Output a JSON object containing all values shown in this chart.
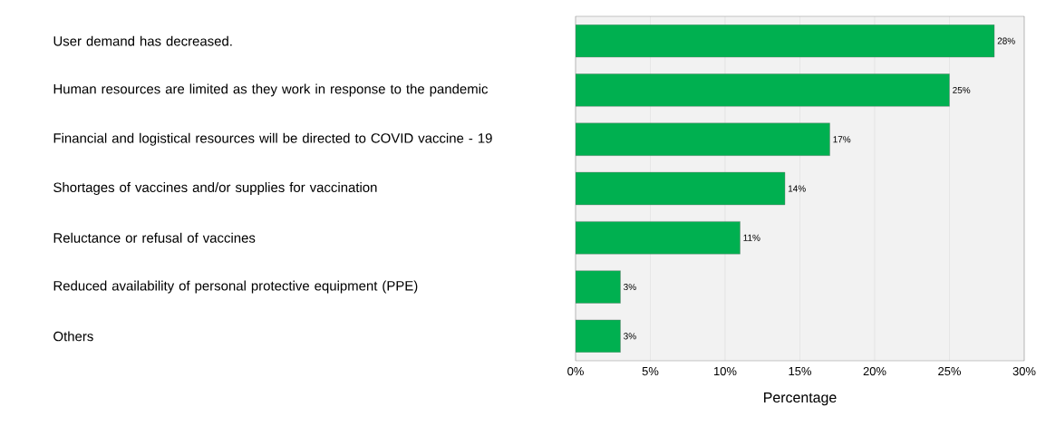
{
  "chart_data": {
    "type": "bar",
    "orientation": "horizontal",
    "categories": [
      "User demand has decreased.",
      "Human resources are limited as they work in response to the pandemic",
      "Financial and logistical resources will be directed to COVID vaccine - 19",
      "Shortages of vaccines and/or supplies for vaccination",
      "Reluctance or refusal of vaccines",
      "Reduced availability of personal protective equipment (PPE)",
      "Others"
    ],
    "values": [
      28,
      25,
      17,
      14,
      11,
      3,
      3
    ],
    "value_labels": [
      "28%",
      "25%",
      "17%",
      "14%",
      "11%",
      "3%",
      "3%"
    ],
    "color": "#00b050",
    "xlabel": "Percentage",
    "xlim": [
      0,
      30
    ],
    "xticks": [
      {
        "value": 0,
        "label": "0%"
      },
      {
        "value": 5,
        "label": "5%"
      },
      {
        "value": 10,
        "label": "10%"
      },
      {
        "value": 15,
        "label": "15%"
      },
      {
        "value": 20,
        "label": "20%"
      },
      {
        "value": 25,
        "label": "25%"
      },
      {
        "value": 30,
        "label": "30%"
      }
    ],
    "grid": "x"
  }
}
